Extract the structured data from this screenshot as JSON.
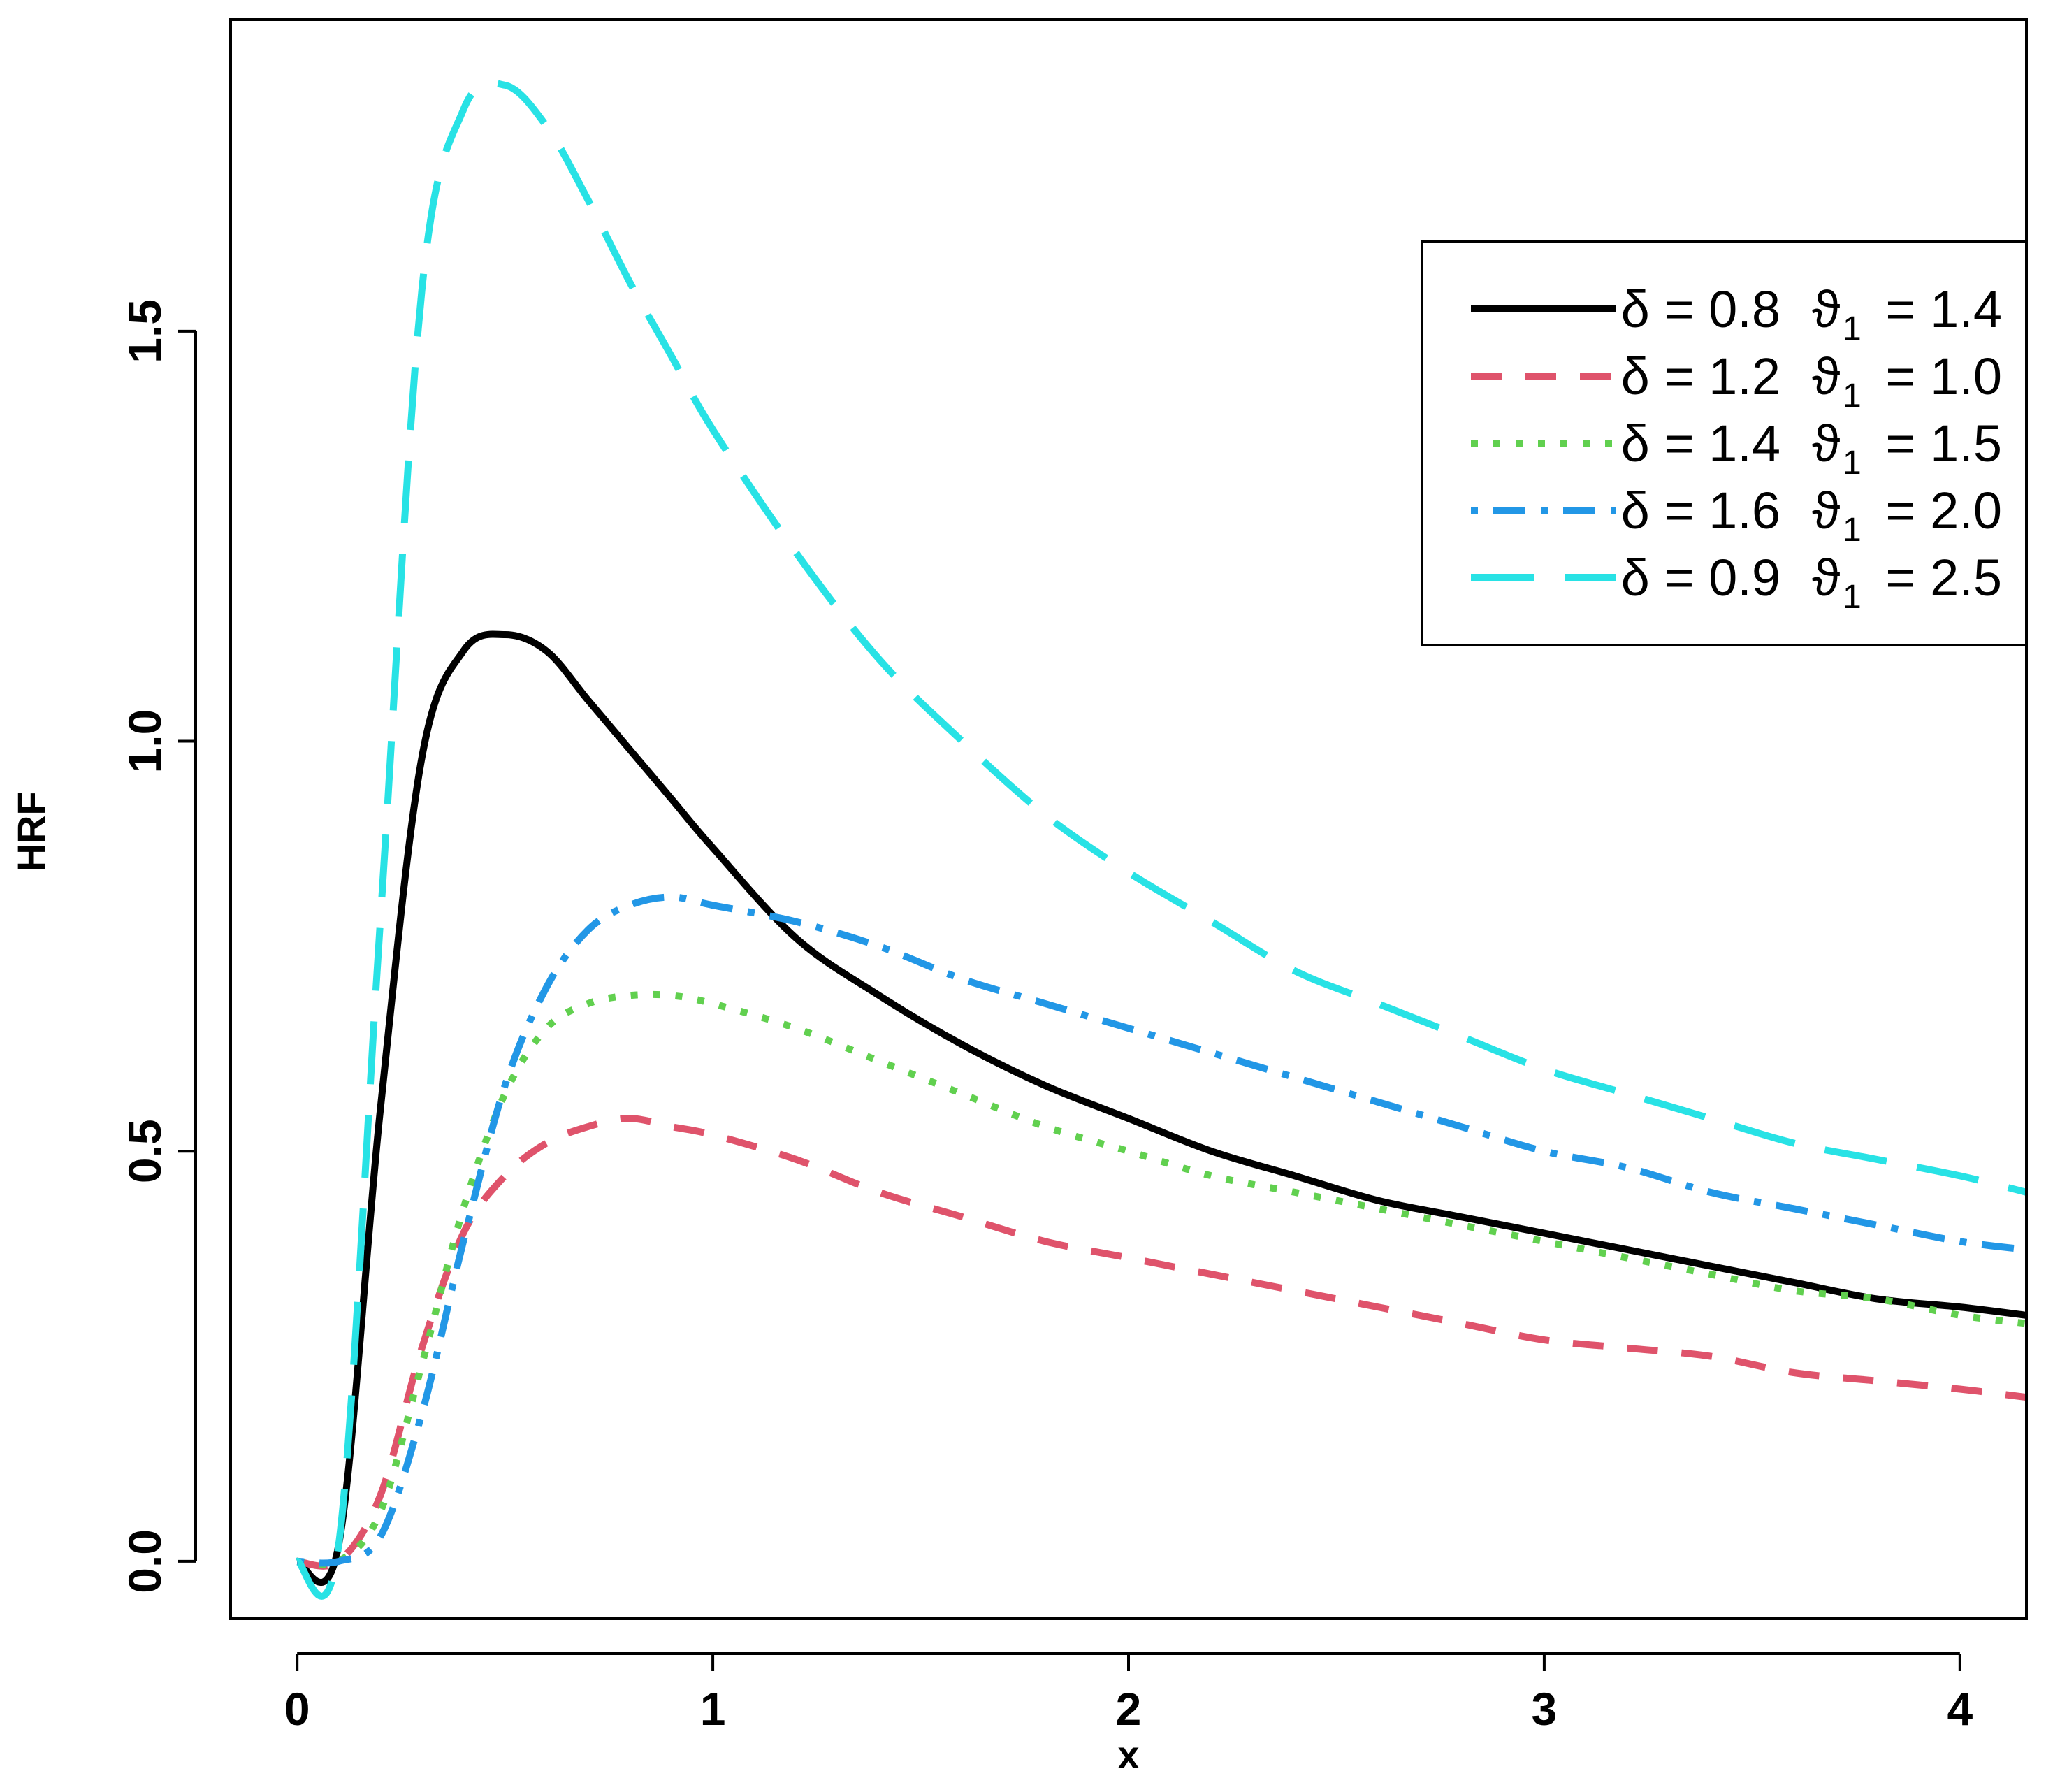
{
  "chart_data": {
    "type": "line",
    "title": "",
    "xlabel": "x",
    "ylabel": "HRF",
    "xlim": [
      -0.16,
      4.16
    ],
    "ylim": [
      -0.07,
      1.88
    ],
    "x_ticks": [
      0,
      1,
      2,
      3,
      4
    ],
    "x_tick_labels": [
      "0",
      "1",
      "2",
      "3",
      "4"
    ],
    "y_ticks": [
      0.0,
      0.5,
      1.0,
      1.5
    ],
    "y_tick_labels": [
      "0.0",
      "0.5",
      "1.0",
      "1.5"
    ],
    "grid": false,
    "legend_position": "top-right",
    "x": [
      0.0,
      0.1,
      0.2,
      0.3,
      0.4,
      0.5,
      0.6,
      0.7,
      0.8,
      0.9,
      1.0,
      1.2,
      1.4,
      1.6,
      1.8,
      2.0,
      2.2,
      2.4,
      2.6,
      2.8,
      3.0,
      3.2,
      3.4,
      3.6,
      3.8,
      4.0,
      4.16
    ],
    "series": [
      {
        "name": "δ = 0.8  ϑ1 = 1.4",
        "legend": {
          "delta": "δ = 0.8",
          "theta_sym": "ϑ",
          "theta_sub": "1",
          "theta_val": "= 1.4"
        },
        "color": "#000000",
        "dash": "solid",
        "values": [
          0.0,
          0.02,
          0.55,
          0.98,
          1.11,
          1.13,
          1.11,
          1.05,
          0.99,
          0.93,
          0.87,
          0.76,
          0.69,
          0.63,
          0.58,
          0.54,
          0.5,
          0.47,
          0.44,
          0.42,
          0.4,
          0.38,
          0.36,
          0.34,
          0.32,
          0.31,
          0.3
        ]
      },
      {
        "name": "δ = 1.2  ϑ1 = 1.0",
        "legend": {
          "delta": "δ = 1.2",
          "theta_sym": "ϑ",
          "theta_sub": "1",
          "theta_val": "= 1.0"
        },
        "color": "#df536b",
        "dash": "dashed",
        "values": [
          0.0,
          0.0,
          0.08,
          0.26,
          0.4,
          0.47,
          0.51,
          0.53,
          0.54,
          0.53,
          0.52,
          0.49,
          0.45,
          0.42,
          0.39,
          0.37,
          0.35,
          0.33,
          0.31,
          0.29,
          0.27,
          0.26,
          0.25,
          0.23,
          0.22,
          0.21,
          0.2
        ]
      },
      {
        "name": "δ = 1.4  ϑ1 = 1.5",
        "legend": {
          "delta": "δ = 1.4",
          "theta_sym": "ϑ",
          "theta_sub": "1",
          "theta_val": "= 1.5"
        },
        "color": "#61d04f",
        "dash": "dotted",
        "values": [
          0.0,
          0.0,
          0.06,
          0.24,
          0.43,
          0.57,
          0.65,
          0.68,
          0.69,
          0.69,
          0.68,
          0.65,
          0.61,
          0.57,
          0.53,
          0.5,
          0.47,
          0.45,
          0.43,
          0.41,
          0.39,
          0.37,
          0.35,
          0.33,
          0.32,
          0.3,
          0.29
        ]
      },
      {
        "name": "δ = 1.6  ϑ1 = 2.0",
        "legend": {
          "delta": "δ = 1.6",
          "theta_sym": "ϑ",
          "theta_sub": "1",
          "theta_val": "= 2.0"
        },
        "color": "#2297e6",
        "dash": "dotdash",
        "values": [
          0.0,
          0.0,
          0.03,
          0.18,
          0.39,
          0.58,
          0.7,
          0.77,
          0.8,
          0.81,
          0.8,
          0.78,
          0.75,
          0.71,
          0.68,
          0.65,
          0.62,
          0.59,
          0.56,
          0.53,
          0.5,
          0.48,
          0.45,
          0.43,
          0.41,
          0.39,
          0.38
        ]
      },
      {
        "name": "δ = 0.9  ϑ1 = 2.5",
        "legend": {
          "delta": "δ = 0.9",
          "theta_sym": "ϑ",
          "theta_sub": "1",
          "theta_val": "= 2.5"
        },
        "color": "#28e2e5",
        "dash": "longdash",
        "values": [
          0.0,
          0.02,
          0.78,
          1.55,
          1.77,
          1.8,
          1.75,
          1.66,
          1.56,
          1.47,
          1.38,
          1.23,
          1.1,
          1.0,
          0.91,
          0.84,
          0.78,
          0.72,
          0.68,
          0.64,
          0.6,
          0.57,
          0.54,
          0.51,
          0.49,
          0.47,
          0.45
        ]
      }
    ]
  }
}
